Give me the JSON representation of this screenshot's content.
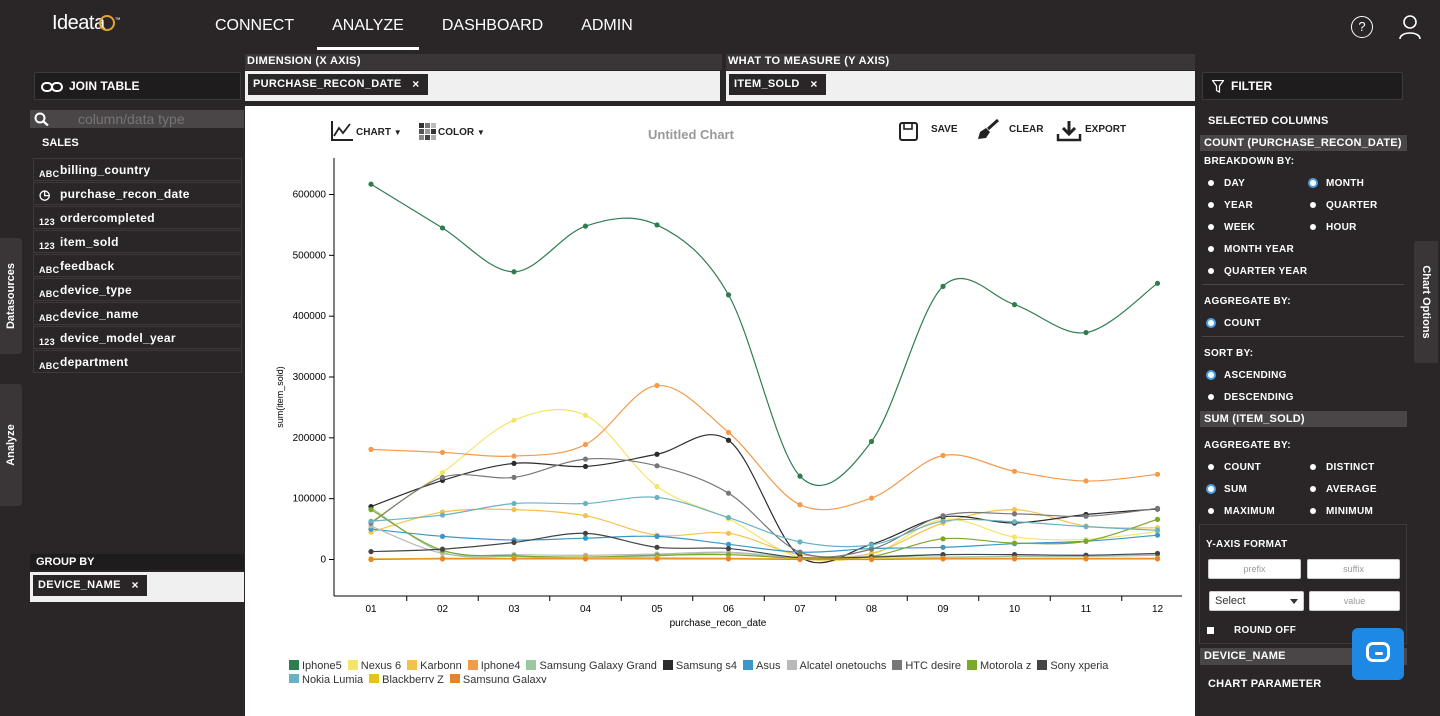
{
  "app": {
    "logo_text": "Ideata",
    "logo_tm": "™"
  },
  "nav": {
    "items": [
      "CONNECT",
      "ANALYZE",
      "DASHBOARD",
      "ADMIN"
    ],
    "active": "ANALYZE"
  },
  "header": {
    "help_glyph": "?"
  },
  "left": {
    "join_label": "JOIN TABLE",
    "search_placeholder": "column/data type",
    "source_title": "SALES",
    "columns": [
      {
        "name": "billing_country",
        "type": "text"
      },
      {
        "name": "purchase_recon_date",
        "type": "time"
      },
      {
        "name": "ordercompleted",
        "type": "num"
      },
      {
        "name": "item_sold",
        "type": "num"
      },
      {
        "name": "feedback",
        "type": "text"
      },
      {
        "name": "device_type",
        "type": "text"
      },
      {
        "name": "device_name",
        "type": "text"
      },
      {
        "name": "device_model_year",
        "type": "num"
      },
      {
        "name": "department",
        "type": "text"
      }
    ],
    "type_glyphs": {
      "text": "ABC",
      "num": "123",
      "time": "◷"
    },
    "datasources_tab": "Datasources",
    "analyze_tab": "Analyze",
    "group_by_label": "GROUP BY",
    "group_by_chip": "DEVICE_NAME"
  },
  "dimension": {
    "label": "DIMENSION (X AXIS)",
    "chip": "PURCHASE_RECON_DATE"
  },
  "measure": {
    "label": "WHAT TO MEASURE (Y AXIS)",
    "chip": "ITEM_SOLD"
  },
  "chip_close": "×",
  "toolbar": {
    "chart_label": "CHART",
    "color_label": "COLOR",
    "title": "Untitled Chart",
    "save_label": "SAVE",
    "clear_label": "CLEAR",
    "export_label": "EXPORT"
  },
  "chart_data": {
    "type": "line",
    "xlabel": "purchase_recon_date",
    "ylabel": "sum(item_sold)",
    "x": [
      "01",
      "02",
      "03",
      "04",
      "05",
      "06",
      "07",
      "08",
      "09",
      "10",
      "11",
      "12"
    ],
    "ylim": [
      -60000,
      660000
    ],
    "yticks": [
      0,
      100000,
      200000,
      300000,
      400000,
      500000,
      600000
    ],
    "legend_position": "bottom",
    "series": [
      {
        "name": "Iphone5",
        "color": "#2e7d4f",
        "values": [
          617000,
          545000,
          473000,
          548000,
          550000,
          435000,
          137000,
          194000,
          449000,
          419000,
          373000,
          454000
        ]
      },
      {
        "name": "Nexus 6",
        "color": "#f5e46a",
        "values": [
          62000,
          143000,
          229000,
          237000,
          120000,
          67000,
          3000,
          8000,
          66000,
          37000,
          33000,
          46000
        ]
      },
      {
        "name": "Karbonn",
        "color": "#f3c24a",
        "values": [
          45000,
          78000,
          82000,
          72000,
          40000,
          43000,
          8000,
          10000,
          60000,
          82000,
          55000,
          52000
        ]
      },
      {
        "name": "Iphone4",
        "color": "#f39a4c",
        "values": [
          181000,
          176000,
          170000,
          189000,
          286000,
          209000,
          90000,
          101000,
          171000,
          145000,
          129000,
          140000
        ]
      },
      {
        "name": "Samsung Galaxy Grand",
        "color": "#9cc8a0",
        "values": [
          85000,
          12000,
          5000,
          4000,
          6000,
          11000,
          2000,
          4000,
          4000,
          5000,
          5000,
          7000
        ]
      },
      {
        "name": "Samsung s4",
        "color": "#2c2a2b",
        "values": [
          87000,
          130000,
          158000,
          153000,
          173000,
          196000,
          5000,
          25000,
          70000,
          60000,
          74000,
          83000
        ]
      },
      {
        "name": "Asus",
        "color": "#3a97c9",
        "values": [
          50000,
          38000,
          32000,
          35000,
          38000,
          25000,
          12000,
          18000,
          20000,
          26000,
          30000,
          40000
        ]
      },
      {
        "name": "Alcatel onetouchs",
        "color": "#b9b9b9",
        "values": [
          55000,
          10000,
          8000,
          7000,
          9000,
          12000,
          3000,
          5000,
          8000,
          8000,
          6000,
          8000
        ]
      },
      {
        "name": "HTC desire",
        "color": "#777777",
        "values": [
          60000,
          135000,
          135000,
          165000,
          154000,
          109000,
          12000,
          17000,
          72000,
          75000,
          71000,
          84000
        ]
      },
      {
        "name": "Motorola z",
        "color": "#7aa827",
        "values": [
          82000,
          15000,
          6000,
          4000,
          7000,
          8000,
          2000,
          5000,
          34000,
          27000,
          30000,
          66000
        ]
      },
      {
        "name": "Sony xperia",
        "color": "#444444",
        "values": [
          13000,
          17000,
          28000,
          43000,
          20000,
          18000,
          3000,
          4000,
          8000,
          8000,
          7000,
          10000
        ]
      },
      {
        "name": "Nokia Lumia",
        "color": "#68b2c4",
        "values": [
          63000,
          73000,
          92000,
          92000,
          102000,
          69000,
          29000,
          24000,
          63000,
          62000,
          54000,
          48000
        ]
      },
      {
        "name": "Blackberry Z",
        "color": "#e7c21e",
        "values": [
          1000,
          2000,
          2000,
          3000,
          3000,
          2000,
          1000,
          1000,
          2000,
          2000,
          2000,
          2000
        ]
      },
      {
        "name": "Samsung Galaxy",
        "color": "#e9832b",
        "values": [
          0,
          1000,
          1000,
          1000,
          1000,
          1000,
          0,
          0,
          1000,
          1000,
          1000,
          1000
        ]
      }
    ]
  },
  "right": {
    "filter_label": "FILTER",
    "selected_columns": "SELECTED COLUMNS",
    "count_band": "COUNT (PURCHASE_RECON_DATE)",
    "breakdown_label": "BREAKDOWN BY:",
    "breakdown_options": [
      "DAY",
      "MONTH",
      "YEAR",
      "QUARTER",
      "WEEK",
      "HOUR",
      "MONTH YEAR",
      "QUARTER YEAR"
    ],
    "breakdown_selected": "MONTH",
    "aggregate_label": "AGGREGATE BY:",
    "aggregate1_options": [
      "COUNT"
    ],
    "sort_label": "SORT BY:",
    "sort_options": [
      "ASCENDING",
      "DESCENDING"
    ],
    "sort_selected": "ASCENDING",
    "sum_band": "SUM (ITEM_SOLD)",
    "aggregate2_options": [
      "COUNT",
      "DISTINCT",
      "SUM",
      "AVERAGE",
      "MAXIMUM",
      "MINIMUM"
    ],
    "aggregate2_selected": "SUM",
    "yaxis_format": "Y-AXIS FORMAT",
    "prefix_placeholder": "prefix",
    "suffix_placeholder": "suffix",
    "select_value": "Select",
    "value_placeholder": "value",
    "round_off": "ROUND OFF",
    "device_band": "DEVICE_NAME",
    "chart_parameter": "CHART PARAMETER",
    "chart_options_tab": "Chart Options"
  }
}
